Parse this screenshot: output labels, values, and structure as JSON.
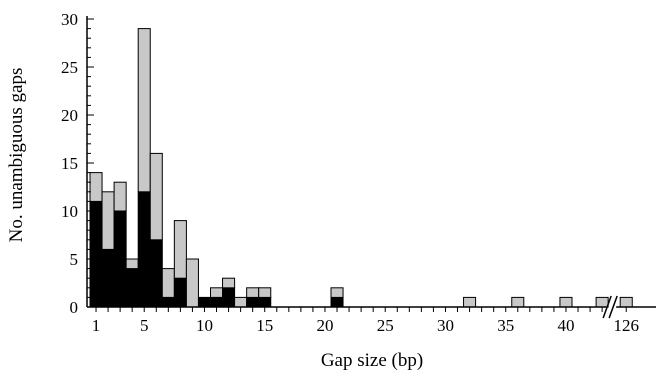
{
  "chart_data": {
    "type": "bar",
    "stacked": true,
    "xlabel": "Gap size (bp)",
    "ylabel": "No. unambiguous gaps",
    "ylim": [
      0,
      30
    ],
    "y_ticks": [
      "0",
      "5",
      "10",
      "15",
      "20",
      "25",
      "30"
    ],
    "x_ticks": [
      "1",
      "5",
      "10",
      "15",
      "20",
      "25",
      "30",
      "35",
      "40",
      "126"
    ],
    "x_break_after": 43,
    "colors": {
      "dark": "#000000",
      "light": "#c8c8c8"
    },
    "categories": [
      1,
      2,
      3,
      4,
      5,
      6,
      7,
      8,
      9,
      10,
      11,
      12,
      13,
      14,
      15,
      16,
      17,
      18,
      19,
      20,
      21,
      22,
      23,
      24,
      25,
      26,
      27,
      28,
      29,
      30,
      31,
      32,
      33,
      34,
      35,
      36,
      37,
      38,
      39,
      40,
      41,
      42,
      43,
      126
    ],
    "series": [
      {
        "values": [
          11,
          6,
          10,
          4,
          12,
          7,
          1,
          3,
          0,
          1,
          1,
          2,
          0,
          1,
          1,
          0,
          0,
          0,
          0,
          0,
          1,
          0,
          0,
          0,
          0,
          0,
          0,
          0,
          0,
          0,
          0,
          0,
          0,
          0,
          0,
          0,
          0,
          0,
          0,
          0,
          0,
          0,
          0,
          0
        ]
      },
      {
        "values": [
          3,
          6,
          3,
          1,
          17,
          9,
          3,
          6,
          5,
          0,
          1,
          1,
          1,
          1,
          1,
          0,
          0,
          0,
          0,
          0,
          1,
          0,
          0,
          0,
          0,
          0,
          0,
          0,
          0,
          0,
          0,
          1,
          0,
          0,
          0,
          1,
          0,
          0,
          0,
          1,
          0,
          0,
          1,
          1
        ]
      }
    ]
  }
}
